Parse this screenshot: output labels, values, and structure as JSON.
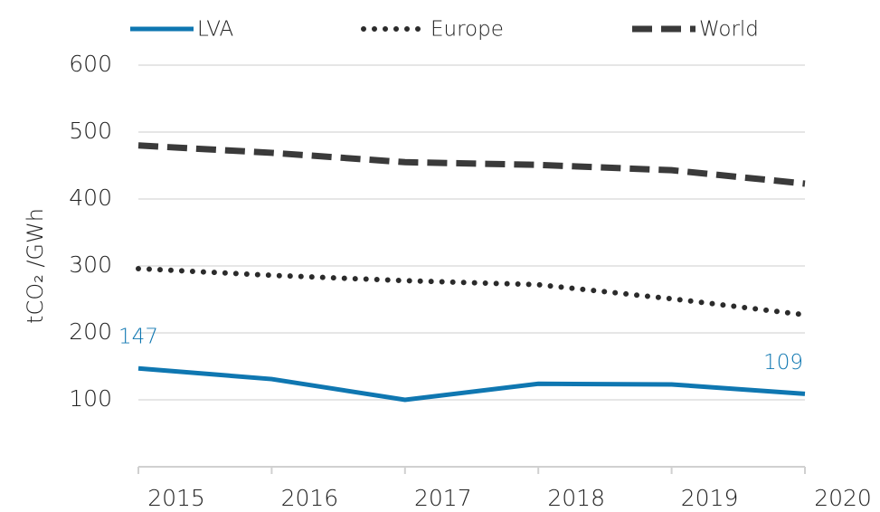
{
  "chart_data": {
    "type": "line",
    "y_label": "tCO₂ /GWh",
    "categories": [
      "2015",
      "2016",
      "2017",
      "2018",
      "2019",
      "2020"
    ],
    "series": [
      {
        "name": "LVA",
        "color": "#0f77b1",
        "style": "solid",
        "values": [
          147,
          131,
          100,
          124,
          123,
          109
        ]
      },
      {
        "name": "Europe",
        "color": "#2b2b2b",
        "style": "dotted",
        "values": [
          296,
          286,
          278,
          272,
          251,
          227
        ]
      },
      {
        "name": "World",
        "color": "#3a3a3a",
        "style": "dashed",
        "values": [
          480,
          469,
          455,
          451,
          443,
          423
        ]
      }
    ],
    "ylim": [
      0,
      600
    ],
    "yticks": [
      100,
      200,
      300,
      400,
      500,
      600
    ],
    "grid": true,
    "legend": "top"
  }
}
